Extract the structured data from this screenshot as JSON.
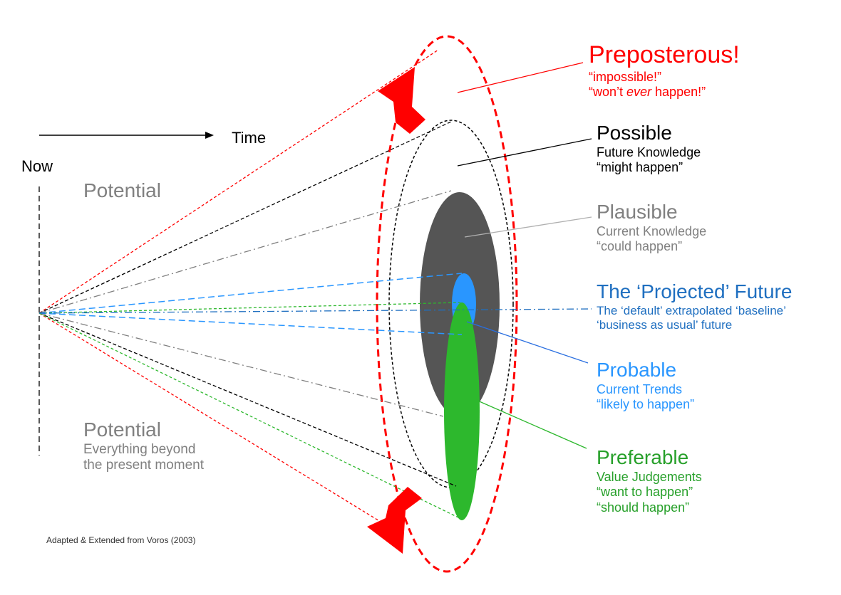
{
  "colors": {
    "red": "#ff0000",
    "black": "#000000",
    "gray": "#808080",
    "dark_gray": "#555555",
    "blue": "#1f6fc0",
    "light_blue": "#2996ff",
    "green": "#2db82d",
    "label_green": "#27a02a"
  },
  "axis": {
    "now_label": "Now",
    "time_label": "Time"
  },
  "potential_top": {
    "title": "Potential"
  },
  "potential_bottom": {
    "title": "Potential",
    "line1": "Everything beyond",
    "line2": "the present moment"
  },
  "categories": {
    "preposterous": {
      "title": "Preposterous!",
      "line1": "“impossible!”",
      "line2_pre": "“won’t ",
      "line2_em": "ever",
      "line2_post": " happen!”"
    },
    "possible": {
      "title": "Possible",
      "line1": "Future Knowledge",
      "line2": "“might happen”"
    },
    "plausible": {
      "title": "Plausible",
      "line1": "Current Knowledge",
      "line2": "“could happen”"
    },
    "projected": {
      "title": "The ‘Projected’ Future",
      "line1": "The ‘default’ extrapolated ‘baseline’",
      "line2": "‘business as usual’ future"
    },
    "probable": {
      "title": "Probable",
      "line1": "Current Trends",
      "line2": "“likely to happen”"
    },
    "preferable": {
      "title": "Preferable",
      "line1": "Value Judgements",
      "line2": "“want to happen”",
      "line3": "“should happen”"
    }
  },
  "citation": "Adapted & Extended  from Voros (2003)"
}
